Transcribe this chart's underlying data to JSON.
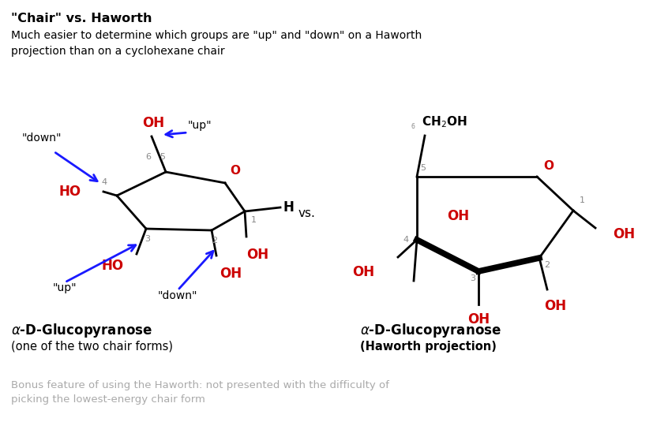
{
  "title_bold": "\"Chair\" vs. Haworth",
  "subtitle": "Much easier to determine which groups are \"up\" and \"down\" on a Haworth\nprojection than on a cyclohexane chair",
  "vs_text": "vs.",
  "left_label1": "α-D-Glucopyranose",
  "left_label2": "(one of the two chair forms)",
  "right_label1": "α-D-Glucopyranose",
  "right_label2": "(Haworth projection)",
  "bonus_text": "Bonus feature of using the Haworth: not presented with the difficulty of\npicking the lowest-energy chair form",
  "bg_color": "#ffffff",
  "black": "#000000",
  "red": "#cc0000",
  "blue": "#1a1aff",
  "gray": "#aaaaaa",
  "dark_gray": "#888888"
}
